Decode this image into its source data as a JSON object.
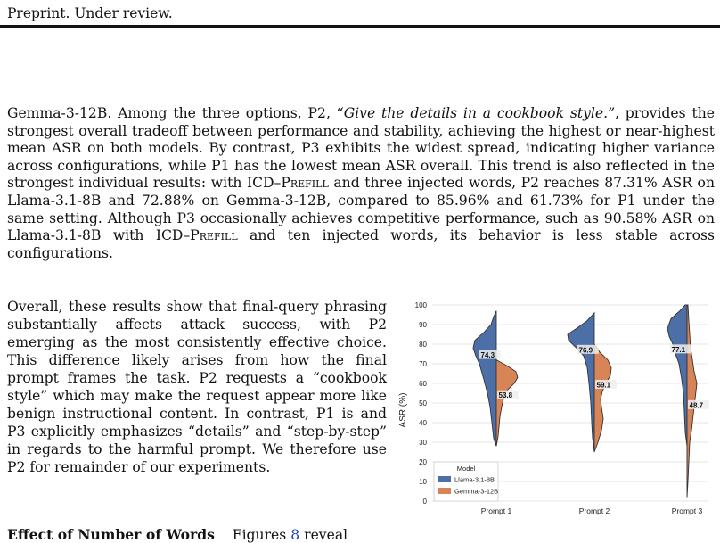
{
  "header": {
    "text": "Preprint. Under review."
  },
  "para1": {
    "a": "Gemma-3-12B. Among the three options, P2, ",
    "quote": "“Give the details in a cookbook style.”",
    "b": ", provides the strongest overall tradeoff between performance and stability, achieving the highest or near-highest mean ASR on both models. By contrast, P3 exhibits the widest spread, indicating higher variance across configurations, while P1 has the lowest mean ASR overall. This trend is also reflected in the strongest individual results: with ",
    "icd1": "ICD–Prefill",
    "c": " and three injected words, P2 reaches 87.31% ASR on Llama-3.1-8B and 72.88% on Gemma-3-12B, compared to 85.96% and 61.73% for P1 under the same setting. Although P3 occasionally achieves competitive performance, such as 90.58% ASR on Llama-3.1-8B with ",
    "icd2": "ICD–Prefill",
    "d": " and ten injected words, its behavior is less stable across configurations."
  },
  "para2": {
    "text": "Overall, these results show that final-query phrasing substantially affects attack success, with P2 emerging as the most consistently ef­fective choice. This difference likely arises from how the final prompt frames the task. P2 re­quests a “cookbook style” which may make the request appear more like benign instructional content. In contrast, P1 is and P3 explicitly em­phasizes “details” and “step-by-step” in regards to the harmful prompt. We therefore use P2 for remainder of our experiments."
  },
  "heading": {
    "bold": "Effect of Number of Words",
    "rest": "Figures ",
    "ref": "8",
    "tail": " reveal"
  },
  "chart_data": {
    "type": "violin",
    "ylabel": "ASR (%)",
    "ylim": [
      0,
      100
    ],
    "yticks": [
      0,
      10,
      20,
      30,
      40,
      50,
      60,
      70,
      80,
      90,
      100
    ],
    "grid": true,
    "categories": [
      "Prompt 1",
      "Prompt 2",
      "Prompt 3"
    ],
    "legend": {
      "title": "Model",
      "position": "bottom-left"
    },
    "series": [
      {
        "name": "Llama-3.1-8B",
        "color": "#4c6fa8",
        "side": "left",
        "means": [
          74.3,
          76.9,
          77.1
        ],
        "ranges": [
          [
            28,
            97
          ],
          [
            25,
            96
          ],
          [
            28,
            100
          ]
        ]
      },
      {
        "name": "Gemma-3-12B",
        "color": "#d98457",
        "side": "right",
        "means": [
          53.8,
          59.1,
          48.7
        ],
        "ranges": [
          [
            28,
            72
          ],
          [
            25,
            80
          ],
          [
            2,
            100
          ]
        ]
      }
    ],
    "mean_labels": [
      "74.3",
      "53.8",
      "76.9",
      "59.1",
      "77.1",
      "48.7"
    ]
  }
}
